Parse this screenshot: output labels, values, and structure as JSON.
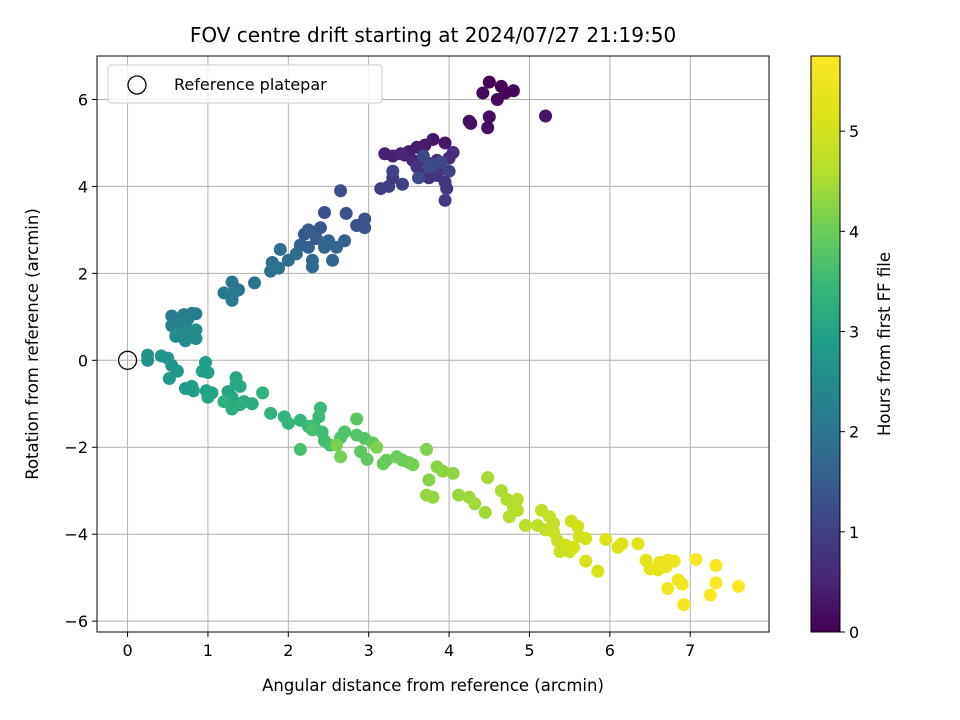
{
  "chart_data": {
    "type": "scatter",
    "title": "FOV centre drift starting at 2024/07/27 21:19:50",
    "xlabel": "Angular distance from reference (arcmin)",
    "ylabel": "Rotation from reference (arcmin)",
    "xlim": [
      -0.38,
      7.98
    ],
    "ylim": [
      -6.25,
      7.0
    ],
    "xticks": [
      0,
      1,
      2,
      3,
      4,
      5,
      6,
      7
    ],
    "yticks": [
      -6,
      -4,
      -2,
      0,
      2,
      4,
      6
    ],
    "ytick_labels": [
      "−6",
      "−4",
      "−2",
      "0",
      "2",
      "4",
      "6"
    ],
    "grid": true,
    "legend": {
      "position": "top-left",
      "entries": [
        "Reference platepar"
      ]
    },
    "reference_point": {
      "x": 0,
      "y": 0,
      "label": "Reference platepar"
    },
    "colorbar": {
      "label": "Hours from first FF file",
      "colormap": "viridis",
      "range": [
        0,
        5.75
      ],
      "ticks": [
        0,
        1,
        2,
        3,
        4,
        5
      ]
    },
    "series": [
      {
        "name": "",
        "points": [
          [
            4.5,
            6.4
          ],
          [
            4.65,
            6.3
          ],
          [
            4.7,
            6.15
          ],
          [
            4.8,
            6.2
          ],
          [
            4.6,
            6.0
          ],
          [
            4.42,
            6.15
          ],
          [
            4.5,
            5.6
          ],
          [
            4.48,
            5.35
          ],
          [
            4.25,
            5.5
          ],
          [
            4.27,
            5.45
          ],
          [
            5.2,
            5.62
          ],
          [
            3.95,
            5.0
          ],
          [
            3.8,
            5.08
          ],
          [
            3.7,
            4.95
          ],
          [
            3.6,
            4.9
          ],
          [
            3.5,
            4.8
          ],
          [
            3.4,
            4.75
          ],
          [
            3.3,
            4.7
          ],
          [
            3.2,
            4.75
          ],
          [
            3.45,
            4.72
          ],
          [
            3.55,
            4.6
          ],
          [
            3.72,
            4.55
          ],
          [
            3.85,
            4.6
          ],
          [
            4.0,
            4.65
          ],
          [
            4.05,
            4.78
          ],
          [
            3.9,
            4.4
          ],
          [
            3.7,
            4.35
          ],
          [
            3.75,
            4.2
          ],
          [
            3.6,
            4.45
          ],
          [
            3.85,
            4.25
          ],
          [
            3.95,
            4.1
          ],
          [
            3.97,
            3.95
          ],
          [
            3.95,
            3.68
          ],
          [
            3.3,
            4.2
          ],
          [
            3.25,
            4.0
          ],
          [
            3.15,
            3.95
          ],
          [
            3.42,
            4.05
          ],
          [
            3.3,
            4.35
          ],
          [
            4.0,
            4.35
          ],
          [
            3.8,
            4.5
          ],
          [
            3.68,
            4.7
          ],
          [
            3.9,
            4.55
          ],
          [
            3.75,
            4.45
          ],
          [
            3.62,
            4.2
          ],
          [
            2.65,
            3.9
          ],
          [
            2.45,
            3.4
          ],
          [
            2.72,
            3.38
          ],
          [
            2.95,
            3.25
          ],
          [
            2.85,
            3.1
          ],
          [
            2.95,
            3.05
          ],
          [
            2.4,
            3.05
          ],
          [
            2.3,
            2.95
          ],
          [
            2.2,
            2.9
          ],
          [
            2.25,
            3.0
          ],
          [
            2.35,
            2.8
          ],
          [
            2.15,
            2.65
          ],
          [
            2.25,
            2.6
          ],
          [
            2.5,
            2.75
          ],
          [
            2.7,
            2.75
          ],
          [
            2.6,
            2.6
          ],
          [
            2.45,
            2.6
          ],
          [
            2.55,
            2.3
          ],
          [
            2.3,
            2.3
          ],
          [
            2.3,
            2.15
          ],
          [
            2.1,
            2.45
          ],
          [
            2.0,
            2.3
          ],
          [
            1.9,
            2.55
          ],
          [
            1.8,
            2.25
          ],
          [
            1.78,
            2.05
          ],
          [
            1.88,
            2.12
          ],
          [
            1.58,
            1.78
          ],
          [
            1.38,
            1.62
          ],
          [
            1.3,
            1.8
          ],
          [
            1.2,
            1.55
          ],
          [
            1.3,
            1.38
          ],
          [
            1.32,
            1.55
          ],
          [
            0.55,
            1.02
          ],
          [
            0.7,
            1.05
          ],
          [
            0.8,
            1.08
          ],
          [
            0.85,
            1.07
          ],
          [
            0.75,
            0.95
          ],
          [
            0.65,
            0.85
          ],
          [
            0.55,
            0.8
          ],
          [
            0.6,
            0.7
          ],
          [
            0.7,
            0.75
          ],
          [
            0.75,
            0.7
          ],
          [
            0.65,
            0.6
          ],
          [
            0.72,
            0.55
          ],
          [
            0.85,
            0.5
          ],
          [
            0.72,
            0.45
          ],
          [
            0.6,
            0.55
          ],
          [
            0.85,
            0.7
          ],
          [
            0.25,
            0.12
          ],
          [
            0.25,
            0.0
          ],
          [
            0.42,
            0.1
          ],
          [
            0.5,
            0.05
          ],
          [
            0.55,
            -0.12
          ],
          [
            0.62,
            -0.25
          ],
          [
            0.52,
            -0.42
          ],
          [
            0.72,
            -0.65
          ],
          [
            0.8,
            -0.6
          ],
          [
            0.82,
            -0.7
          ],
          [
            0.97,
            -0.05
          ],
          [
            1.0,
            -0.28
          ],
          [
            0.93,
            -0.25
          ],
          [
            0.98,
            -0.7
          ],
          [
            1.05,
            -0.75
          ],
          [
            1.0,
            -0.85
          ],
          [
            1.25,
            -0.72
          ],
          [
            1.3,
            -0.85
          ],
          [
            1.35,
            -0.55
          ],
          [
            1.35,
            -0.4
          ],
          [
            1.4,
            -0.6
          ],
          [
            1.45,
            -0.95
          ],
          [
            1.55,
            -1.0
          ],
          [
            1.3,
            -1.12
          ],
          [
            1.4,
            -1.02
          ],
          [
            1.2,
            -0.95
          ],
          [
            1.68,
            -0.75
          ],
          [
            1.78,
            -1.22
          ],
          [
            1.95,
            -1.3
          ],
          [
            2.0,
            -1.45
          ],
          [
            2.15,
            -1.38
          ],
          [
            2.25,
            -1.52
          ],
          [
            2.4,
            -1.1
          ],
          [
            2.38,
            -1.3
          ],
          [
            2.32,
            -1.5
          ],
          [
            2.42,
            -1.65
          ],
          [
            2.45,
            -1.85
          ],
          [
            2.52,
            -1.95
          ],
          [
            2.3,
            -1.6
          ],
          [
            2.15,
            -2.05
          ],
          [
            2.65,
            -1.78
          ],
          [
            2.7,
            -1.65
          ],
          [
            2.85,
            -1.72
          ],
          [
            2.95,
            -1.8
          ],
          [
            2.85,
            -1.35
          ],
          [
            2.9,
            -2.1
          ],
          [
            2.98,
            -2.28
          ],
          [
            3.05,
            -1.9
          ],
          [
            3.18,
            -2.38
          ],
          [
            3.22,
            -2.3
          ],
          [
            3.35,
            -2.22
          ],
          [
            3.42,
            -2.3
          ],
          [
            3.5,
            -2.35
          ],
          [
            3.55,
            -2.4
          ],
          [
            2.65,
            -2.22
          ],
          [
            2.6,
            -1.95
          ],
          [
            3.1,
            -2.0
          ],
          [
            3.72,
            -2.05
          ],
          [
            3.75,
            -2.75
          ],
          [
            3.85,
            -2.45
          ],
          [
            3.92,
            -2.55
          ],
          [
            4.05,
            -2.6
          ],
          [
            3.72,
            -3.1
          ],
          [
            3.8,
            -3.15
          ],
          [
            4.12,
            -3.1
          ],
          [
            4.25,
            -3.15
          ],
          [
            4.32,
            -3.3
          ],
          [
            4.45,
            -3.5
          ],
          [
            4.48,
            -2.7
          ],
          [
            4.65,
            -3.0
          ],
          [
            4.72,
            -3.2
          ],
          [
            4.75,
            -3.6
          ],
          [
            4.85,
            -3.2
          ],
          [
            4.85,
            -3.45
          ],
          [
            4.8,
            -3.38
          ],
          [
            4.95,
            -3.8
          ],
          [
            5.1,
            -3.8
          ],
          [
            5.15,
            -3.45
          ],
          [
            5.2,
            -3.9
          ],
          [
            5.25,
            -3.6
          ],
          [
            5.3,
            -3.75
          ],
          [
            5.3,
            -3.95
          ],
          [
            5.35,
            -4.15
          ],
          [
            5.38,
            -4.4
          ],
          [
            5.45,
            -4.25
          ],
          [
            5.5,
            -4.4
          ],
          [
            5.52,
            -3.7
          ],
          [
            5.6,
            -3.82
          ],
          [
            5.62,
            -4.05
          ],
          [
            5.7,
            -4.1
          ],
          [
            5.55,
            -4.3
          ],
          [
            5.7,
            -4.62
          ],
          [
            5.85,
            -4.85
          ],
          [
            5.95,
            -4.12
          ],
          [
            6.1,
            -4.3
          ],
          [
            6.15,
            -4.22
          ],
          [
            6.35,
            -4.22
          ],
          [
            6.45,
            -4.6
          ],
          [
            6.5,
            -4.8
          ],
          [
            6.6,
            -4.82
          ],
          [
            6.62,
            -4.65
          ],
          [
            6.7,
            -4.75
          ],
          [
            6.65,
            -4.68
          ],
          [
            6.72,
            -4.6
          ],
          [
            6.8,
            -4.62
          ],
          [
            6.72,
            -5.25
          ],
          [
            6.85,
            -5.05
          ],
          [
            6.9,
            -5.15
          ],
          [
            6.92,
            -5.62
          ],
          [
            7.07,
            -4.58
          ],
          [
            7.25,
            -5.4
          ],
          [
            7.32,
            -4.72
          ],
          [
            7.32,
            -5.12
          ],
          [
            7.6,
            -5.2
          ]
        ]
      }
    ]
  }
}
